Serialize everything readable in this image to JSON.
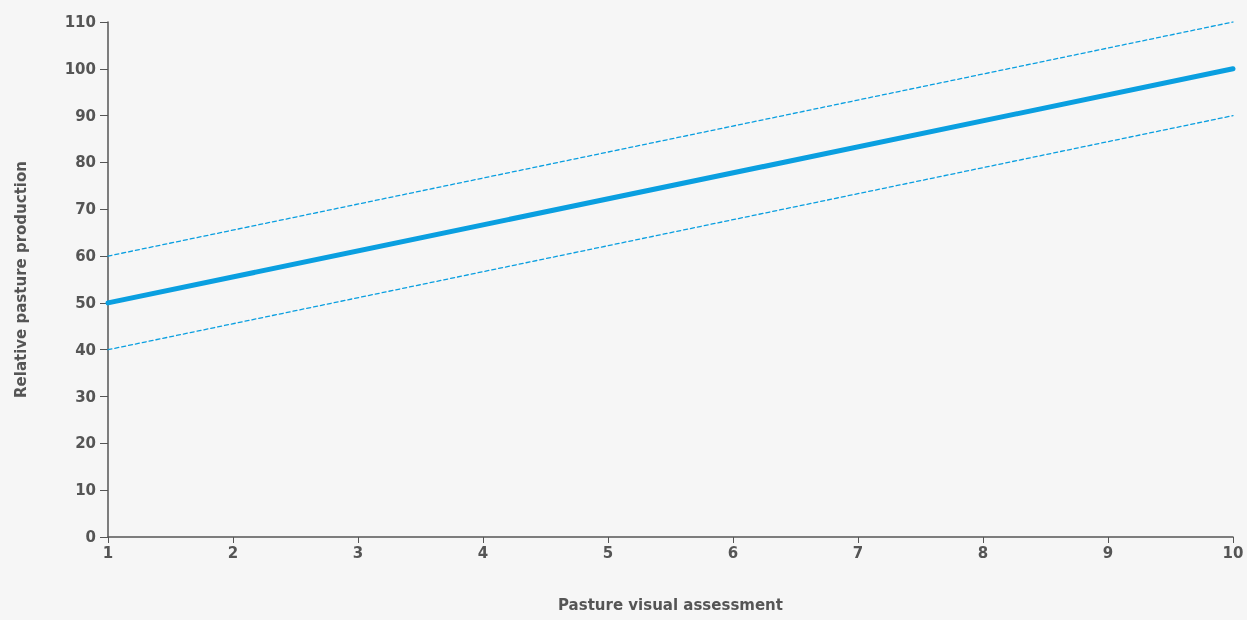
{
  "chart_data": {
    "type": "line",
    "xlabel": "Pasture visual assessment",
    "ylabel": "Relative pasture production",
    "xlim": [
      1,
      10
    ],
    "xticks": [
      1,
      2,
      3,
      4,
      5,
      6,
      7,
      8,
      9,
      10
    ],
    "ylim": [
      0,
      110
    ],
    "yticks": [
      0,
      10,
      20,
      30,
      40,
      50,
      60,
      70,
      80,
      90,
      100,
      110
    ],
    "grid": false,
    "marker": "none",
    "x": [
      1,
      10
    ],
    "series": [
      {
        "color": "#0a9fe0",
        "values": [
          50,
          100
        ],
        "line_style": "solid"
      },
      {
        "color": "#0a9fe0",
        "values": [
          60,
          110
        ],
        "line_style": "dashed"
      },
      {
        "color": "#0a9fe0",
        "values": [
          40,
          90
        ],
        "line_style": "dashed"
      }
    ]
  }
}
